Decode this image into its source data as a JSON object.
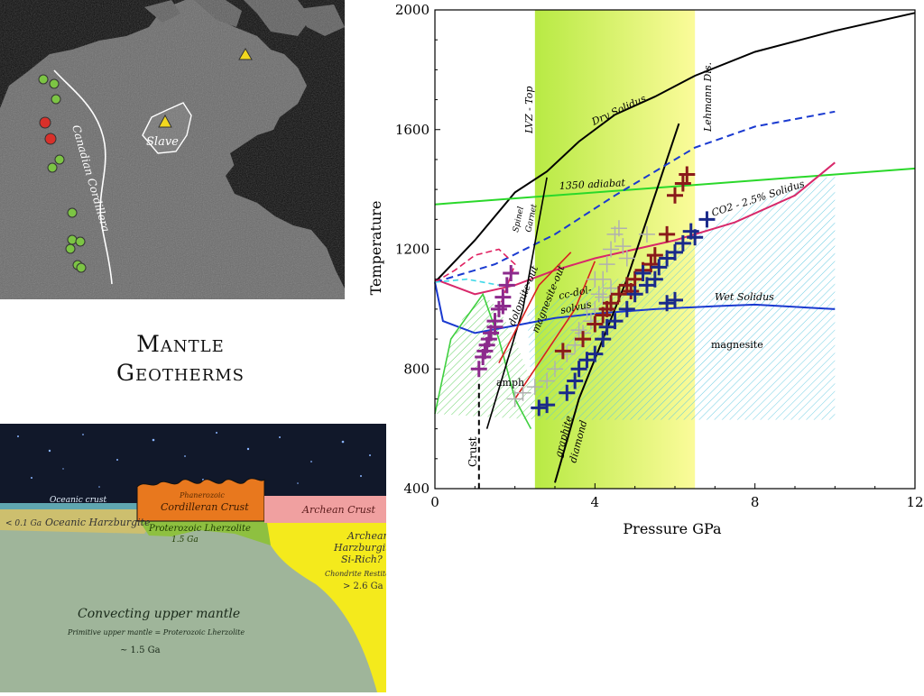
{
  "slide": {
    "title_line1": "Mantle",
    "title_line2": "Geotherms"
  },
  "map": {
    "labels": {
      "cordillera": "Canadian Cordillera",
      "slave": "Slave"
    },
    "colors": {
      "green_site": "#7cc444",
      "red_site": "#d8302a",
      "triangle": "#f2d81e"
    }
  },
  "section": {
    "labels": {
      "oceanic_crust": "Oceanic crust",
      "oceanic_age": "< 0.1 Ga",
      "oceanic_harzburgite": "Oceanic Harzburgite",
      "phanerozoic": "Phanerozoic",
      "cordilleran_crust": "Cordilleran Crust",
      "proterozoic_lherzolite": "Proterozoic Lherzolite",
      "proterozoic_age": "1.5 Ga",
      "archean_crust": "Archean Crust",
      "archean_harz_1": "Archean",
      "archean_harz_2": "Harzburgite",
      "archean_harz_3": "Si-Rich?",
      "chondrite_restite": "Chondrite Restite",
      "archean_age": "> 2.6 Ga",
      "convecting": "Convecting upper mantle",
      "primitive": "Primitive upper mantle = Proterozoic Lherzolite",
      "mantle_age": "~ 1.5 Ga"
    },
    "colors": {
      "sky": "#11182a",
      "oceanic_crust": "#5fa6b0",
      "harzburgite": "#cdbf6e",
      "cordilleran": "#e8781e",
      "lherzolite": "#8ec040",
      "archean_crust": "#f0a0a0",
      "archean_mantle": "#f4ea1c",
      "mantle": "#9fb59a"
    }
  },
  "chart_data": {
    "type": "scatter",
    "xlabel": "Pressure GPa",
    "ylabel": "Temperature",
    "xlim": [
      0,
      12
    ],
    "ylim": [
      400,
      2000
    ],
    "xticks": [
      0,
      4,
      8,
      12
    ],
    "yticks": [
      400,
      800,
      1200,
      1600,
      2000
    ],
    "bands": [
      {
        "name": "LVZ - Top",
        "x0": 2.5,
        "x1": 6.5,
        "color": "#e4f46e"
      }
    ],
    "curves": [
      {
        "name": "Dry Solidus",
        "color": "#000000",
        "points": [
          [
            0,
            1090
          ],
          [
            1,
            1230
          ],
          [
            2,
            1390
          ],
          [
            2.8,
            1460
          ],
          [
            3.6,
            1560
          ],
          [
            4.5,
            1650
          ],
          [
            5.5,
            1710
          ],
          [
            6.5,
            1780
          ],
          [
            8,
            1860
          ],
          [
            10,
            1930
          ],
          [
            12,
            1990
          ]
        ]
      },
      {
        "name": "1350 adiabat",
        "color": "#2ad82a",
        "points": [
          [
            0,
            1350
          ],
          [
            12,
            1470
          ]
        ]
      },
      {
        "name": "CO2 - 2.5% Solidus",
        "color": "#d8286a",
        "points": [
          [
            0,
            1100
          ],
          [
            1,
            1050
          ],
          [
            2,
            1080
          ],
          [
            3,
            1130
          ],
          [
            4,
            1170
          ],
          [
            6,
            1230
          ],
          [
            7.5,
            1290
          ],
          [
            9,
            1380
          ],
          [
            10,
            1490
          ]
        ]
      },
      {
        "name": "Wet Solidus",
        "color": "#1a3ad0",
        "points": [
          [
            0,
            1090
          ],
          [
            0.2,
            960
          ],
          [
            1,
            920
          ],
          [
            2,
            945
          ],
          [
            3,
            970
          ],
          [
            4,
            985
          ],
          [
            5.5,
            1000
          ],
          [
            7,
            1010
          ],
          [
            8,
            1015
          ],
          [
            10,
            1000
          ]
        ]
      },
      {
        "name": "Lehmann Dis.",
        "color": "#000000",
        "points": [
          [
            6.1,
            1620
          ],
          [
            4.8,
            1100
          ],
          [
            3.6,
            700
          ],
          [
            3.0,
            420
          ]
        ]
      },
      {
        "name": "Crust",
        "color": "#000000",
        "dash": true,
        "points": [
          [
            1.1,
            750
          ],
          [
            1.1,
            400
          ]
        ]
      }
    ],
    "annotations": [
      "Dry Solidus",
      "1350 adiabat",
      "CO2 - 2.5% Solidus",
      "Wet Solidus",
      "LVZ - Top",
      "Lehmann Dis.",
      "Spinel",
      "Garnet",
      "dolomite-out",
      "magnesite-out",
      "cc-dol-",
      "solvus",
      "amph",
      "graphite",
      "diamond",
      "Crust",
      "magnesite"
    ],
    "series": [
      {
        "name": "",
        "color": "#8c2a8c",
        "marker": "plus",
        "points": [
          [
            1.1,
            800
          ],
          [
            1.2,
            840
          ],
          [
            1.3,
            880
          ],
          [
            1.4,
            920
          ],
          [
            1.5,
            960
          ],
          [
            1.6,
            1000
          ],
          [
            1.7,
            1040
          ],
          [
            1.8,
            1080
          ],
          [
            1.9,
            1120
          ],
          [
            1.25,
            860
          ],
          [
            1.35,
            900
          ],
          [
            1.5,
            940
          ],
          [
            1.7,
            1010
          ]
        ]
      },
      {
        "name": "",
        "color": "#b0b0b0",
        "marker": "plus",
        "points": [
          [
            2.0,
            700
          ],
          [
            2.2,
            720
          ],
          [
            2.5,
            740
          ],
          [
            2.8,
            760
          ],
          [
            3.0,
            800
          ],
          [
            3.3,
            850
          ],
          [
            3.5,
            880
          ],
          [
            3.7,
            920
          ],
          [
            3.9,
            960
          ],
          [
            4.0,
            1000
          ],
          [
            4.1,
            1050
          ],
          [
            4.2,
            1100
          ],
          [
            4.3,
            1150
          ],
          [
            4.4,
            1200
          ],
          [
            4.5,
            1250
          ],
          [
            4.6,
            1270
          ],
          [
            4.7,
            1210
          ],
          [
            4.8,
            1170
          ],
          [
            3.8,
            1000
          ],
          [
            4.2,
            1040
          ],
          [
            4.0,
            1100
          ],
          [
            4.4,
            1070
          ],
          [
            3.6,
            930
          ],
          [
            5.3,
            1250
          ]
        ]
      },
      {
        "name": "",
        "color": "#8a1a1a",
        "marker": "plus",
        "points": [
          [
            3.2,
            860
          ],
          [
            3.7,
            900
          ],
          [
            4.0,
            950
          ],
          [
            4.2,
            980
          ],
          [
            4.4,
            1020
          ],
          [
            4.6,
            1050
          ],
          [
            4.8,
            1080
          ],
          [
            5.0,
            1100
          ],
          [
            5.2,
            1130
          ],
          [
            5.5,
            1180
          ],
          [
            5.8,
            1250
          ],
          [
            6.0,
            1380
          ],
          [
            6.2,
            1420
          ],
          [
            6.3,
            1450
          ],
          [
            4.3,
            1000
          ],
          [
            4.9,
            1060
          ],
          [
            5.4,
            1150
          ]
        ]
      },
      {
        "name": "",
        "color": "#1a2a8a",
        "marker": "plus",
        "points": [
          [
            2.6,
            670
          ],
          [
            2.8,
            680
          ],
          [
            3.3,
            720
          ],
          [
            3.5,
            760
          ],
          [
            3.6,
            800
          ],
          [
            3.8,
            830
          ],
          [
            4.0,
            850
          ],
          [
            4.2,
            900
          ],
          [
            4.5,
            960
          ],
          [
            4.8,
            1000
          ],
          [
            5.0,
            1050
          ],
          [
            5.3,
            1080
          ],
          [
            5.5,
            1100
          ],
          [
            5.6,
            1140
          ],
          [
            5.8,
            1170
          ],
          [
            6.0,
            1190
          ],
          [
            6.2,
            1220
          ],
          [
            6.5,
            1240
          ],
          [
            6.8,
            1300
          ],
          [
            5.8,
            1020
          ],
          [
            6.0,
            1030
          ],
          [
            4.3,
            940
          ],
          [
            5.2,
            1120
          ],
          [
            6.4,
            1260
          ]
        ]
      }
    ]
  }
}
